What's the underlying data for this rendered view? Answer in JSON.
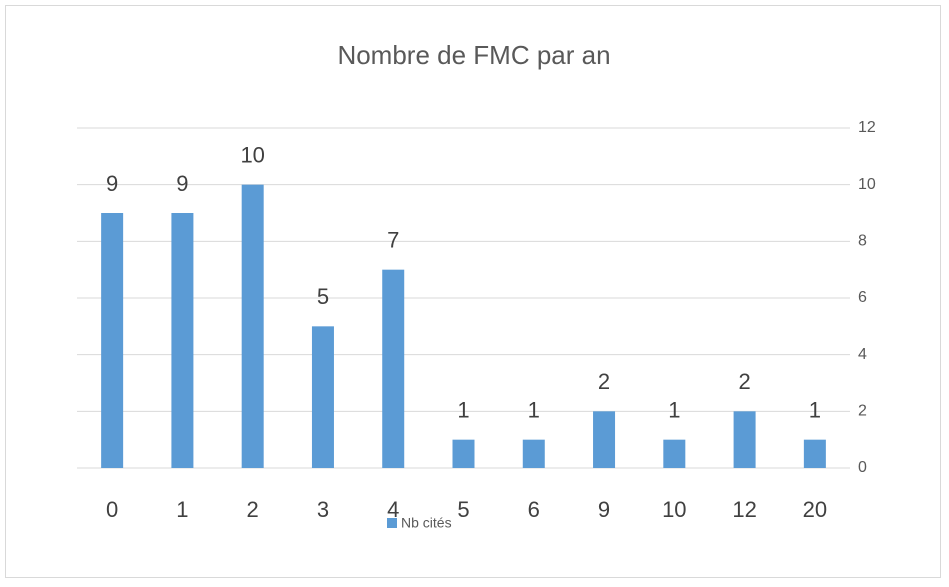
{
  "chart_data": {
    "type": "bar",
    "title": "Nombre  de FMC par an",
    "categories": [
      "0",
      "1",
      "2",
      "3",
      "4",
      "5",
      "6",
      "9",
      "10",
      "12",
      "20"
    ],
    "series": [
      {
        "name": "Nb cités",
        "color": "#5b9bd5",
        "values": [
          9,
          9,
          10,
          5,
          7,
          1,
          1,
          2,
          1,
          2,
          1
        ]
      }
    ],
    "ylim": [
      0,
      12
    ],
    "yticks": [
      0,
      2,
      4,
      6,
      8,
      10,
      12
    ],
    "y_axis_side": "right",
    "grid": true,
    "legend": "bottom"
  }
}
